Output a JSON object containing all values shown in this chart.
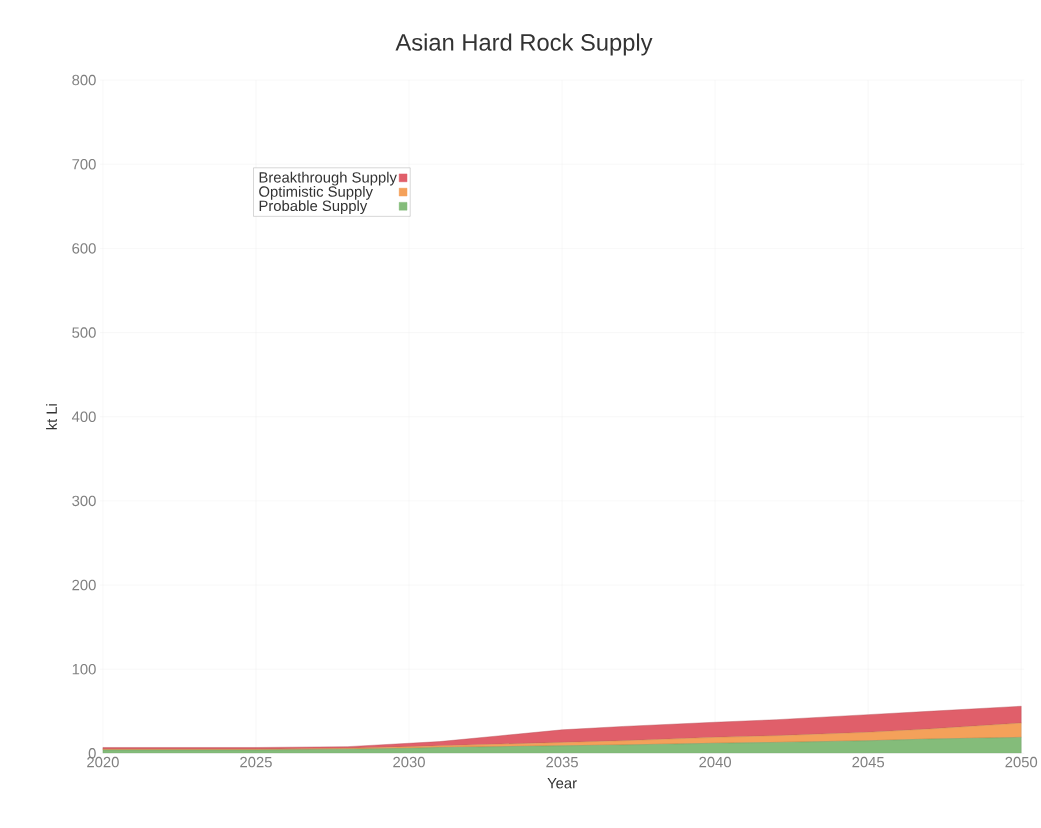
{
  "chart_data": {
    "type": "area",
    "stacked": true,
    "title": "Asian Hard Rock Supply",
    "xlabel": "Year",
    "ylabel": "kt Li",
    "x": [
      2020,
      2023,
      2025,
      2028,
      2030,
      2031,
      2033,
      2035,
      2037,
      2040,
      2042,
      2045,
      2047,
      2050
    ],
    "series": [
      {
        "name": "Probable Supply",
        "color": "#84bc7a",
        "values": [
          4,
          4,
          4,
          5,
          6,
          7,
          8,
          9,
          10,
          12,
          13,
          15,
          17,
          19
        ]
      },
      {
        "name": "Optimistic Supply",
        "color": "#f4a15a",
        "values": [
          1,
          1,
          1,
          1,
          2,
          2,
          3,
          4,
          5,
          7,
          8,
          10,
          12,
          17
        ]
      },
      {
        "name": "Breakthrough Supply",
        "color": "#e05f6a",
        "values": [
          2,
          2,
          2,
          2,
          4,
          5,
          10,
          15,
          17,
          18,
          19,
          21,
          21,
          20
        ]
      }
    ],
    "xlim": [
      2019.9,
      2050.1
    ],
    "xticks": [
      2020,
      2025,
      2030,
      2035,
      2040,
      2045,
      2050
    ],
    "ylim": [
      0,
      800
    ],
    "yticks": [
      0,
      100,
      200,
      300,
      400,
      500,
      600,
      700,
      800
    ],
    "grid": true,
    "legend": "top left",
    "line_style": "solid",
    "marker": "none"
  }
}
